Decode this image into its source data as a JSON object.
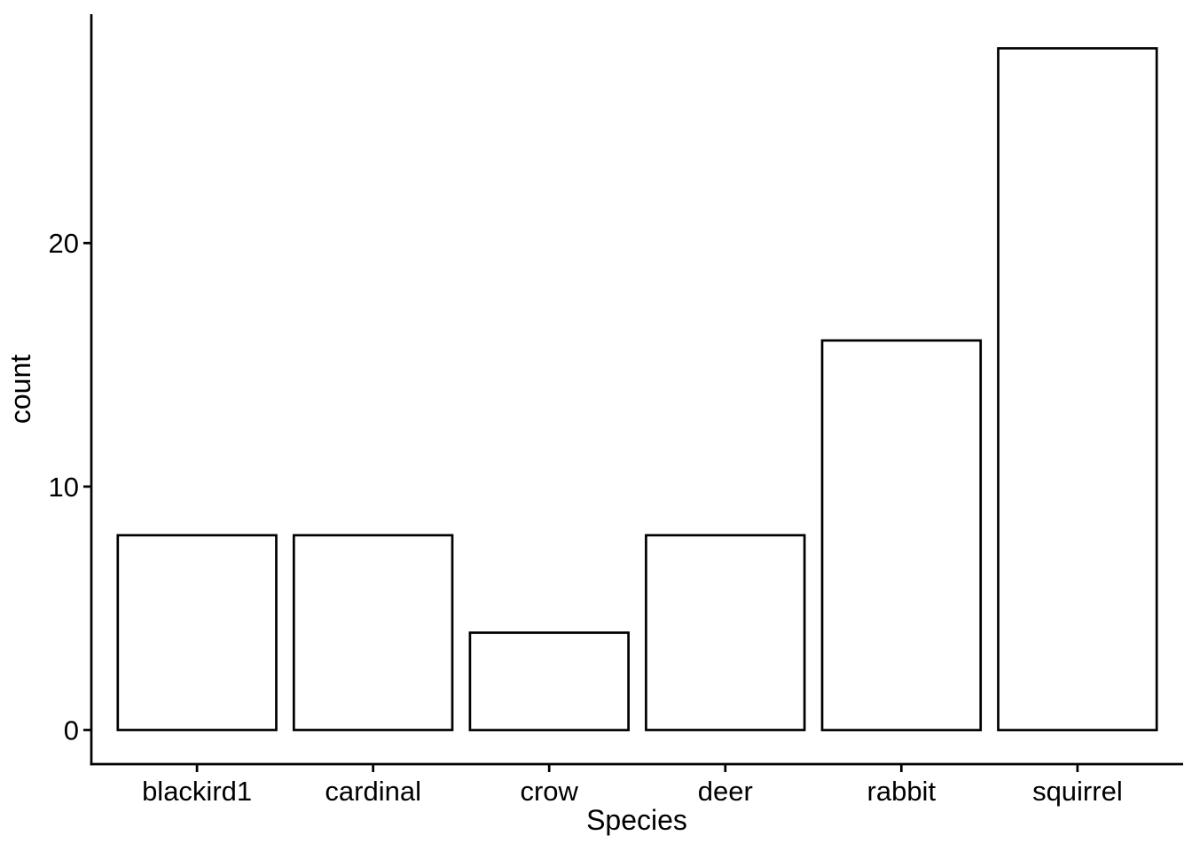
{
  "chart_data": {
    "type": "bar",
    "title": "",
    "categories": [
      "blackird1",
      "cardinal",
      "crow",
      "deer",
      "rabbit",
      "squirrel"
    ],
    "values": [
      8,
      8,
      4,
      8,
      16,
      28
    ],
    "xlabel": "Species",
    "ylabel": "count",
    "y_ticks": [
      0,
      10,
      20
    ],
    "ylim": [
      -1.4,
      29.4
    ],
    "grid": false,
    "legend": false,
    "bar_fill": "#ffffff",
    "bar_stroke": "#000000",
    "axis_color": "#000000",
    "text_color": "#000000",
    "background": "#ffffff"
  }
}
